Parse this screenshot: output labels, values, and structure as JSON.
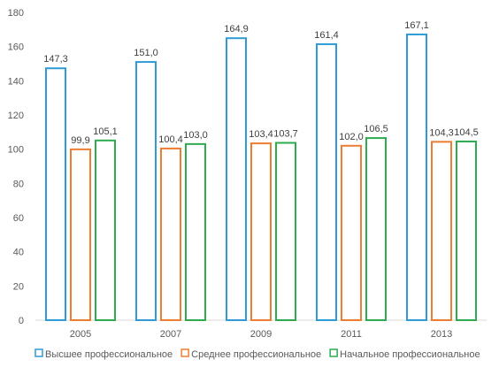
{
  "chart_data": {
    "type": "bar",
    "title": "",
    "xlabel": "",
    "ylabel": "",
    "ylim": [
      0,
      180
    ],
    "yticks": [
      0,
      20,
      40,
      60,
      80,
      100,
      120,
      140,
      160,
      180
    ],
    "grid": false,
    "legend_position": "bottom",
    "categories": [
      "2005",
      "2007",
      "2009",
      "2011",
      "2013"
    ],
    "series": [
      {
        "name": "Высшее профессиональное",
        "color": "#2e9bd6",
        "values": [
          147.3,
          151.0,
          164.9,
          161.4,
          167.1
        ],
        "labels": [
          "147,3",
          "151,0",
          "164,9",
          "161,4",
          "167,1"
        ]
      },
      {
        "name": "Среднее профессиональное",
        "color": "#ed7d31",
        "values": [
          99.9,
          100.4,
          103.4,
          102.0,
          104.3
        ],
        "labels": [
          "99,9",
          "100,4",
          "103,4",
          "102,0",
          "104,3"
        ]
      },
      {
        "name": "Начальное профессиональное",
        "color": "#2eaa4f",
        "values": [
          105.1,
          103.0,
          103.7,
          106.5,
          104.5
        ],
        "labels": [
          "105,1",
          "103,0",
          "103,7",
          "106,5",
          "104,5"
        ]
      }
    ]
  }
}
